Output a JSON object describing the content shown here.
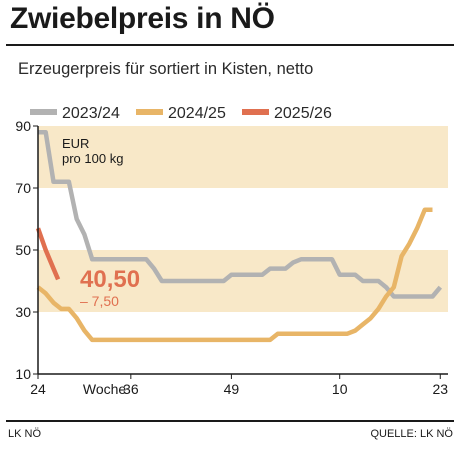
{
  "header": {
    "title": "Zwiebelpreis in NÖ",
    "subtitle": "Erzeugerpreis für sortiert in Kisten, netto"
  },
  "footer": {
    "left": "LK NÖ",
    "right": "QUELLE: LK NÖ"
  },
  "colors": {
    "band": "#f8e8c8",
    "series_2023": "#b2b2b2",
    "series_2024": "#e8b567",
    "series_2025": "#e07050",
    "axis": "#1a1a1a",
    "highlight": "#e07050"
  },
  "chart_data": {
    "type": "line",
    "title": "Zwiebelpreis in NÖ",
    "subtitle": "Erzeugerpreis für sortiert in Kisten, netto",
    "unit_label": [
      "EUR",
      "pro 100 kg"
    ],
    "xlabel": "Woche",
    "x_tick_labels": [
      "24",
      "Woche",
      "36",
      "49",
      "10",
      "23"
    ],
    "y_ticks": [
      10,
      30,
      50,
      70,
      90
    ],
    "ylim": [
      10,
      90
    ],
    "bands": [
      [
        30,
        50
      ],
      [
        70,
        90
      ]
    ],
    "legend": [
      "2023/24",
      "2024/25",
      "2025/26"
    ],
    "legend_position": "top",
    "grid": false,
    "x_domain": [
      0,
      53
    ],
    "highlight": {
      "value": "40,50",
      "change": "– 7,50"
    },
    "series": [
      {
        "name": "2023/24",
        "points": [
          [
            0,
            88
          ],
          [
            1,
            88
          ],
          [
            2,
            72
          ],
          [
            3,
            72
          ],
          [
            4,
            72
          ],
          [
            5,
            60
          ],
          [
            6,
            55
          ],
          [
            7,
            47
          ],
          [
            8,
            47
          ],
          [
            9,
            47
          ],
          [
            10,
            47
          ],
          [
            11,
            47
          ],
          [
            12,
            47
          ],
          [
            13,
            47
          ],
          [
            14,
            47
          ],
          [
            15,
            44
          ],
          [
            16,
            40
          ],
          [
            17,
            40
          ],
          [
            18,
            40
          ],
          [
            19,
            40
          ],
          [
            20,
            40
          ],
          [
            21,
            40
          ],
          [
            22,
            40
          ],
          [
            23,
            40
          ],
          [
            24,
            40
          ],
          [
            25,
            42
          ],
          [
            26,
            42
          ],
          [
            27,
            42
          ],
          [
            28,
            42
          ],
          [
            29,
            42
          ],
          [
            30,
            44
          ],
          [
            31,
            44
          ],
          [
            32,
            44
          ],
          [
            33,
            46
          ],
          [
            34,
            47
          ],
          [
            35,
            47
          ],
          [
            36,
            47
          ],
          [
            37,
            47
          ],
          [
            38,
            47
          ],
          [
            39,
            42
          ],
          [
            40,
            42
          ],
          [
            41,
            42
          ],
          [
            42,
            40
          ],
          [
            43,
            40
          ],
          [
            44,
            40
          ],
          [
            45,
            38
          ],
          [
            46,
            35
          ],
          [
            47,
            35
          ],
          [
            48,
            35
          ],
          [
            49,
            35
          ],
          [
            50,
            35
          ],
          [
            51,
            35
          ],
          [
            52,
            38
          ]
        ]
      },
      {
        "name": "2024/25",
        "points": [
          [
            0,
            38
          ],
          [
            1,
            36
          ],
          [
            2,
            33
          ],
          [
            3,
            31
          ],
          [
            4,
            31
          ],
          [
            5,
            28
          ],
          [
            6,
            24
          ],
          [
            7,
            21
          ],
          [
            8,
            21
          ],
          [
            9,
            21
          ],
          [
            10,
            21
          ],
          [
            11,
            21
          ],
          [
            12,
            21
          ],
          [
            13,
            21
          ],
          [
            14,
            21
          ],
          [
            15,
            21
          ],
          [
            16,
            21
          ],
          [
            17,
            21
          ],
          [
            18,
            21
          ],
          [
            19,
            21
          ],
          [
            20,
            21
          ],
          [
            21,
            21
          ],
          [
            22,
            21
          ],
          [
            23,
            21
          ],
          [
            24,
            21
          ],
          [
            25,
            21
          ],
          [
            26,
            21
          ],
          [
            27,
            21
          ],
          [
            28,
            21
          ],
          [
            29,
            21
          ],
          [
            30,
            21
          ],
          [
            31,
            23
          ],
          [
            32,
            23
          ],
          [
            33,
            23
          ],
          [
            34,
            23
          ],
          [
            35,
            23
          ],
          [
            36,
            23
          ],
          [
            37,
            23
          ],
          [
            38,
            23
          ],
          [
            39,
            23
          ],
          [
            40,
            23
          ],
          [
            41,
            24
          ],
          [
            42,
            26
          ],
          [
            43,
            28
          ],
          [
            44,
            31
          ],
          [
            45,
            35
          ],
          [
            46,
            38
          ],
          [
            47,
            48
          ],
          [
            48,
            52
          ],
          [
            49,
            57
          ],
          [
            50,
            63
          ],
          [
            51,
            63
          ]
        ]
      },
      {
        "name": "2025/26",
        "points": [
          [
            0,
            57
          ],
          [
            1,
            50
          ],
          [
            2,
            44
          ],
          [
            2.6,
            40.5
          ]
        ]
      }
    ]
  }
}
